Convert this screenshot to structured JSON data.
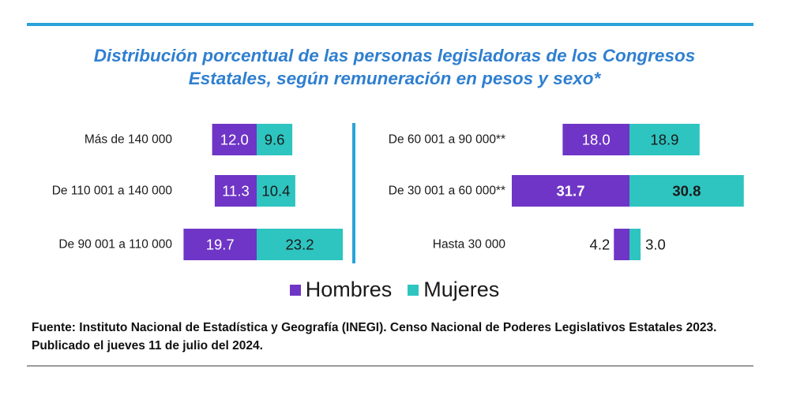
{
  "title": {
    "line1": "Distribución porcentual de las personas legisladoras de los Congresos",
    "line2": "Estatales, según remuneración en pesos y sexo*"
  },
  "legend": {
    "hombres": "Hombres",
    "mujeres": "Mujeres"
  },
  "colors": {
    "hombres": "#6f35c6",
    "mujeres": "#2ec4c0",
    "accent": "#29a3d9",
    "title": "#2f7fd0"
  },
  "source": {
    "line1": "Fuente: Instituto Nacional de Estadística y Geografía (INEGI). Censo Nacional de Poderes Legislativos Estatales 2023.",
    "line2": "Publicado el jueves 11 de julio del 2024."
  },
  "chart_data": {
    "type": "bar",
    "orientation": "horizontal-diverging",
    "title": "Distribución porcentual de las personas legisladoras de los Congresos Estatales, según remuneración en pesos y sexo*",
    "series": [
      {
        "name": "Hombres",
        "color": "#6f35c6"
      },
      {
        "name": "Mujeres",
        "color": "#2ec4c0"
      }
    ],
    "panels": [
      {
        "position": "left",
        "rows": [
          {
            "label": "Más de 140 000",
            "hombres": 12.0,
            "mujeres": 9.6,
            "hombres_label": "12.0",
            "mujeres_label": "9.6"
          },
          {
            "label": "De 110 001 a 140 000",
            "hombres": 11.3,
            "mujeres": 10.4,
            "hombres_label": "11.3",
            "mujeres_label": "10.4"
          },
          {
            "label": "De 90 001 a 110 000",
            "hombres": 19.7,
            "mujeres": 23.2,
            "hombres_label": "19.7",
            "mujeres_label": "23.2"
          }
        ]
      },
      {
        "position": "right",
        "rows": [
          {
            "label": "De 60 001 a 90 000**",
            "hombres": 18.0,
            "mujeres": 18.9,
            "hombres_label": "18.0",
            "mujeres_label": "18.9"
          },
          {
            "label": "De 30 001 a 60 000**",
            "hombres": 31.7,
            "mujeres": 30.8,
            "hombres_label": "31.7",
            "mujeres_label": "30.8",
            "bold": true
          },
          {
            "label": "Hasta 30 000",
            "hombres": 4.2,
            "mujeres": 3.0,
            "hombres_label": "4.2",
            "mujeres_label": "3.0",
            "outside_labels": true
          }
        ]
      }
    ]
  }
}
